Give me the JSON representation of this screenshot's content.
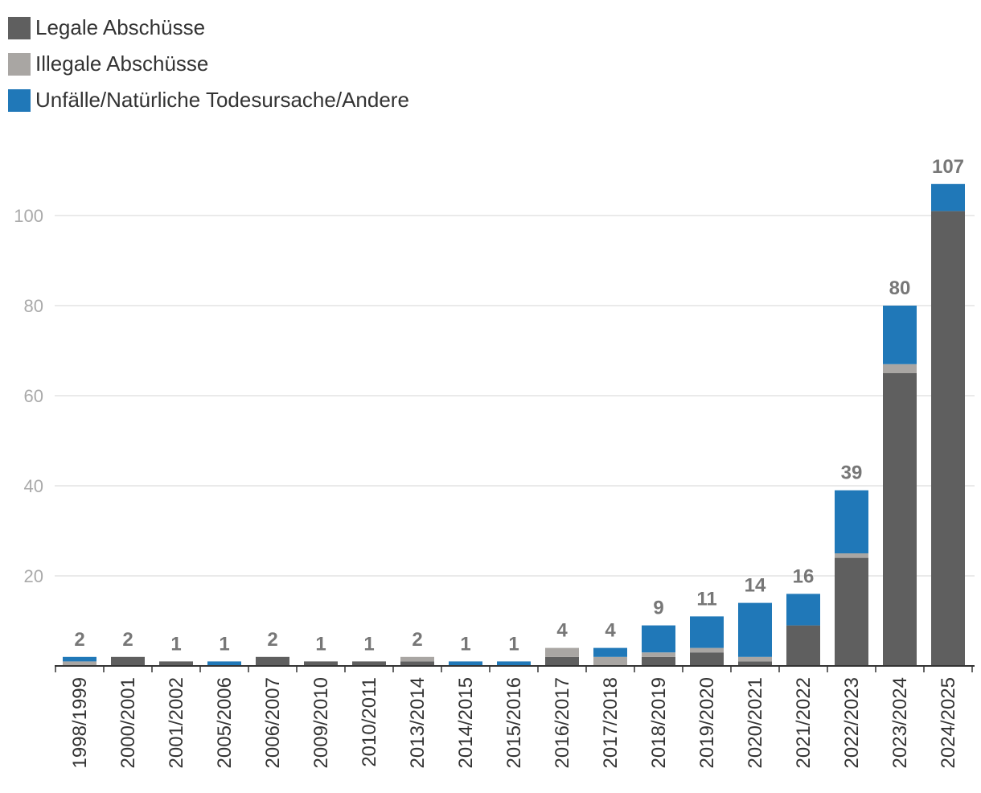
{
  "colors": {
    "legal": "#5f5f5f",
    "illegal": "#a9a6a3",
    "other": "#2078b8",
    "grid": "#e3e3e3",
    "axis": "#333333"
  },
  "chart_data": {
    "type": "bar",
    "stacked": true,
    "categories": [
      "1998/1999",
      "2000/2001",
      "2001/2002",
      "2005/2006",
      "2006/2007",
      "2009/2010",
      "2010/2011",
      "2013/2014",
      "2014/2015",
      "2015/2016",
      "2016/2017",
      "2017/2018",
      "2018/2019",
      "2019/2020",
      "2020/2021",
      "2021/2022",
      "2022/2023",
      "2023/2024",
      "2024/2025"
    ],
    "series": [
      {
        "name": "Legale Abschüsse",
        "values": [
          0,
          2,
          1,
          0,
          2,
          1,
          1,
          1,
          0,
          0,
          2,
          0,
          2,
          3,
          1,
          9,
          24,
          65,
          101
        ]
      },
      {
        "name": "Illegale Abschüsse",
        "values": [
          1,
          0,
          0,
          0,
          0,
          0,
          0,
          1,
          0,
          0,
          2,
          2,
          1,
          1,
          1,
          0,
          1,
          2,
          0
        ]
      },
      {
        "name": "Unfälle/Natürliche Todesursache/Andere",
        "values": [
          1,
          0,
          0,
          1,
          0,
          0,
          0,
          0,
          1,
          1,
          0,
          2,
          6,
          7,
          12,
          7,
          14,
          13,
          6
        ]
      }
    ],
    "totals": [
      "2",
      "2",
      "1",
      "1",
      "2",
      "1",
      "1",
      "2",
      "1",
      "1",
      "4",
      "4",
      "9",
      "11",
      "14",
      "16",
      "39",
      "80",
      "107"
    ],
    "yticks": [
      "20",
      "40",
      "60",
      "80",
      "100"
    ],
    "ylim": [
      0,
      110
    ],
    "grid": true,
    "legend_position": "top-left"
  }
}
